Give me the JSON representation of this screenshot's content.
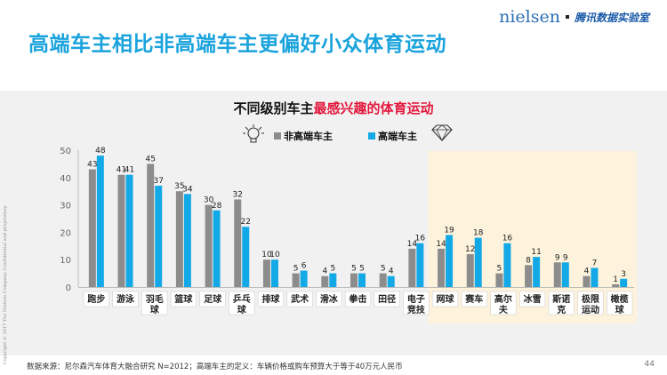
{
  "page": {
    "title": "高端车主相比非高端车主更偏好小众体育运动",
    "brand_nielsen": "nielsen",
    "brand_lab": "腾讯数据实验室",
    "side_text": "Copyright © 2017 The Nielsen Company. Confidential and proprietary.",
    "source": "数据来源：尼尔森汽车体育大融合研究 N=2012；高端车主的定义：车辆价格或购车预算大于等于40万元人民币",
    "page_number": "44"
  },
  "chart_data": {
    "type": "bar",
    "title_prefix": "不同级别车主",
    "title_highlight": "最感兴趣的体育运动",
    "categories": [
      "跑步",
      "游泳",
      "羽毛球",
      "篮球",
      "足球",
      "乒乓球",
      "排球",
      "武术",
      "滑冰",
      "拳击",
      "田径",
      "电子竞技",
      "网球",
      "赛车",
      "高尔夫",
      "冰雪",
      "斯诺克",
      "极限运动",
      "橄榄球"
    ],
    "category_lines": [
      [
        "跑步"
      ],
      [
        "游泳"
      ],
      [
        "羽毛",
        "球"
      ],
      [
        "篮球"
      ],
      [
        "足球"
      ],
      [
        "乒乓",
        "球"
      ],
      [
        "排球"
      ],
      [
        "武术"
      ],
      [
        "滑冰"
      ],
      [
        "拳击"
      ],
      [
        "田径"
      ],
      [
        "电子",
        "竞技"
      ],
      [
        "网球"
      ],
      [
        "赛车"
      ],
      [
        "高尔",
        "夫"
      ],
      [
        "冰雪"
      ],
      [
        "斯诺",
        "克"
      ],
      [
        "极限",
        "运动"
      ],
      [
        "橄榄",
        "球"
      ]
    ],
    "series": [
      {
        "name": "非高端车主",
        "color": "#8c8c8c",
        "values": [
          43,
          41,
          45,
          35,
          30,
          32,
          10,
          5,
          4,
          5,
          5,
          14,
          14,
          12,
          5,
          8,
          9,
          4,
          1
        ]
      },
      {
        "name": "高端车主",
        "color": "#12a9e6",
        "values": [
          48,
          41,
          37,
          34,
          28,
          22,
          10,
          6,
          5,
          5,
          4,
          16,
          19,
          18,
          16,
          11,
          9,
          7,
          3
        ]
      }
    ],
    "ylim": [
      0,
      50
    ],
    "yticks": [
      0,
      10,
      20,
      30,
      40,
      50
    ],
    "highlight_region": {
      "from_category": "网球",
      "to_category": "橄榄球",
      "color": "#fdf3dc"
    },
    "legend_position": "top-center"
  }
}
